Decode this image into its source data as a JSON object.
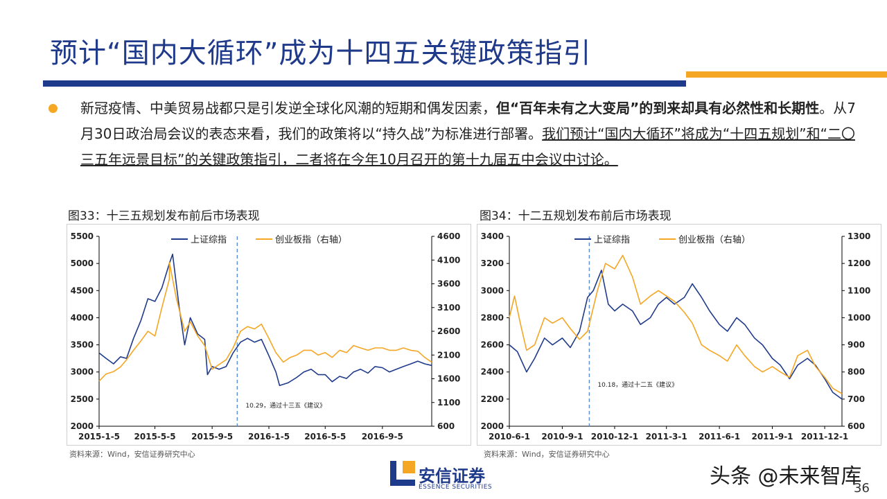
{
  "title": "预计“国内大循环”成为十四五关键政策指引",
  "paragraph": {
    "p1": "新冠疫情、中美贸易战都只是引发逆全球化风潮的短期和偶发因素，",
    "p2_bold": "但“百年未有之大变局”的到来却具有必然性和长期性",
    "p3": "。从7月30日政治局会议的表态来看，我们的政策将以“持久战”为标准进行部署。",
    "p4_underline": "我们预计“国内大循环”将成为“十四五规划”和“二〇三五年远景目标”的关键政策指引，二者将在今年10月召开的第十九届五中会议中讨论。"
  },
  "colors": {
    "navy": "#1e3a8a",
    "orange": "#f5a623",
    "title": "#1f3a8a",
    "divider": "#5b8fd6"
  },
  "chart_data": [
    {
      "type": "line",
      "title": "图33：十三五规划发布前后市场表现",
      "source": "资料来源：Wind，安信证券研究中心",
      "x_ticks": [
        "2015-1-5",
        "2015-5-5",
        "2015-9-5",
        "2016-1-5",
        "2016-5-5",
        "2016-9-5"
      ],
      "x_tick_dates": [
        "2015-01-05",
        "2015-05-05",
        "2015-09-05",
        "2016-01-05",
        "2016-05-05",
        "2016-09-05"
      ],
      "x_range": [
        "2015-01-05",
        "2016-12-20"
      ],
      "ylim_left": [
        2000,
        5500
      ],
      "yticks_left": [
        2000,
        2500,
        3000,
        3500,
        4000,
        4500,
        5000,
        5500
      ],
      "ylim_right": [
        600,
        4600
      ],
      "yticks_right": [
        600,
        1100,
        1600,
        2100,
        2600,
        3100,
        3600,
        4100,
        4600
      ],
      "annotation": {
        "text": "10.29，通过十三五《建议》",
        "date": "2015-10-29"
      },
      "legend_position": "top-center",
      "series": [
        {
          "name": "上证综指",
          "axis": "left",
          "color": "#1e3a8a",
          "points": [
            [
              "2015-01-05",
              3350
            ],
            [
              "2015-01-20",
              3250
            ],
            [
              "2015-02-05",
              3150
            ],
            [
              "2015-02-20",
              3280
            ],
            [
              "2015-03-05",
              3250
            ],
            [
              "2015-03-20",
              3620
            ],
            [
              "2015-04-05",
              3950
            ],
            [
              "2015-04-20",
              4350
            ],
            [
              "2015-05-05",
              4300
            ],
            [
              "2015-05-20",
              4550
            ],
            [
              "2015-06-05",
              5000
            ],
            [
              "2015-06-12",
              5170
            ],
            [
              "2015-06-26",
              4200
            ],
            [
              "2015-07-08",
              3500
            ],
            [
              "2015-07-20",
              4000
            ],
            [
              "2015-08-05",
              3700
            ],
            [
              "2015-08-20",
              3600
            ],
            [
              "2015-08-26",
              2950
            ],
            [
              "2015-09-05",
              3100
            ],
            [
              "2015-09-20",
              3050
            ],
            [
              "2015-10-05",
              3100
            ],
            [
              "2015-10-20",
              3350
            ],
            [
              "2015-11-05",
              3550
            ],
            [
              "2015-11-20",
              3620
            ],
            [
              "2015-12-05",
              3550
            ],
            [
              "2015-12-20",
              3600
            ],
            [
              "2016-01-05",
              3300
            ],
            [
              "2016-01-20",
              3000
            ],
            [
              "2016-01-28",
              2750
            ],
            [
              "2016-02-15",
              2800
            ],
            [
              "2016-03-05",
              2900
            ],
            [
              "2016-03-20",
              3000
            ],
            [
              "2016-04-05",
              3050
            ],
            [
              "2016-04-20",
              2950
            ],
            [
              "2016-05-05",
              2950
            ],
            [
              "2016-05-20",
              2820
            ],
            [
              "2016-06-05",
              2920
            ],
            [
              "2016-06-20",
              2880
            ],
            [
              "2016-07-05",
              3000
            ],
            [
              "2016-07-20",
              3050
            ],
            [
              "2016-08-05",
              2980
            ],
            [
              "2016-08-20",
              3100
            ],
            [
              "2016-09-05",
              3080
            ],
            [
              "2016-09-20",
              3000
            ],
            [
              "2016-10-05",
              3050
            ],
            [
              "2016-10-20",
              3100
            ],
            [
              "2016-11-05",
              3150
            ],
            [
              "2016-11-20",
              3200
            ],
            [
              "2016-12-05",
              3150
            ],
            [
              "2016-12-20",
              3120
            ]
          ]
        },
        {
          "name": "创业板指（右轴）",
          "axis": "right",
          "color": "#f5a623",
          "points": [
            [
              "2015-01-05",
              1550
            ],
            [
              "2015-01-20",
              1700
            ],
            [
              "2015-02-05",
              1750
            ],
            [
              "2015-02-20",
              1850
            ],
            [
              "2015-03-05",
              2000
            ],
            [
              "2015-03-20",
              2200
            ],
            [
              "2015-04-05",
              2400
            ],
            [
              "2015-04-20",
              2600
            ],
            [
              "2015-05-05",
              2500
            ],
            [
              "2015-05-20",
              3100
            ],
            [
              "2015-06-05",
              3700
            ],
            [
              "2015-06-05",
              4050
            ],
            [
              "2015-06-20",
              3300
            ],
            [
              "2015-07-08",
              2600
            ],
            [
              "2015-07-20",
              2800
            ],
            [
              "2015-08-05",
              2500
            ],
            [
              "2015-08-20",
              2300
            ],
            [
              "2015-09-05",
              1800
            ],
            [
              "2015-09-20",
              1900
            ],
            [
              "2015-10-05",
              2000
            ],
            [
              "2015-10-20",
              2250
            ],
            [
              "2015-11-05",
              2600
            ],
            [
              "2015-11-20",
              2700
            ],
            [
              "2015-12-05",
              2650
            ],
            [
              "2015-12-20",
              2750
            ],
            [
              "2016-01-05",
              2450
            ],
            [
              "2016-01-20",
              2150
            ],
            [
              "2016-02-05",
              1950
            ],
            [
              "2016-02-20",
              2050
            ],
            [
              "2016-03-05",
              2100
            ],
            [
              "2016-03-20",
              2200
            ],
            [
              "2016-04-05",
              2200
            ],
            [
              "2016-04-20",
              2100
            ],
            [
              "2016-05-05",
              2150
            ],
            [
              "2016-05-20",
              2050
            ],
            [
              "2016-06-05",
              2200
            ],
            [
              "2016-06-20",
              2150
            ],
            [
              "2016-07-05",
              2300
            ],
            [
              "2016-07-20",
              2250
            ],
            [
              "2016-08-05",
              2200
            ],
            [
              "2016-08-20",
              2250
            ],
            [
              "2016-09-05",
              2250
            ],
            [
              "2016-09-20",
              2200
            ],
            [
              "2016-10-05",
              2200
            ],
            [
              "2016-10-20",
              2250
            ],
            [
              "2016-11-05",
              2200
            ],
            [
              "2016-11-20",
              2180
            ],
            [
              "2016-12-05",
              2050
            ],
            [
              "2016-12-20",
              1950
            ]
          ]
        }
      ]
    },
    {
      "type": "line",
      "title": "图34：十二五规划发布前后市场表现",
      "source": "资料来源：Wind，安信证券研究中心",
      "x_ticks": [
        "2010-6-1",
        "2010-9-1",
        "2010-12-1",
        "2011-3-1",
        "2011-6-1",
        "2011-9-1",
        "2011-12-1"
      ],
      "x_tick_dates": [
        "2010-06-01",
        "2010-09-01",
        "2010-12-01",
        "2011-03-01",
        "2011-06-01",
        "2011-09-01",
        "2011-12-01"
      ],
      "x_range": [
        "2010-06-01",
        "2011-12-31"
      ],
      "ylim_left": [
        2000,
        3400
      ],
      "yticks_left": [
        2000,
        2200,
        2400,
        2600,
        2800,
        3000,
        3200,
        3400
      ],
      "ylim_right": [
        600,
        1300
      ],
      "yticks_right": [
        600,
        700,
        800,
        900,
        1000,
        1100,
        1200,
        1300
      ],
      "annotation": {
        "text": "10.18，通过十二五《建议》",
        "date": "2010-10-18"
      },
      "legend_position": "top-center",
      "series": [
        {
          "name": "上证综指",
          "axis": "left",
          "color": "#1e3a8a",
          "points": [
            [
              "2010-06-01",
              2600
            ],
            [
              "2010-06-15",
              2550
            ],
            [
              "2010-07-01",
              2400
            ],
            [
              "2010-07-15",
              2500
            ],
            [
              "2010-08-01",
              2650
            ],
            [
              "2010-08-15",
              2600
            ],
            [
              "2010-09-01",
              2650
            ],
            [
              "2010-09-15",
              2580
            ],
            [
              "2010-10-01",
              2700
            ],
            [
              "2010-10-15",
              2950
            ],
            [
              "2010-10-25",
              3000
            ],
            [
              "2010-11-08",
              3150
            ],
            [
              "2010-11-20",
              2900
            ],
            [
              "2010-12-01",
              2850
            ],
            [
              "2010-12-15",
              2900
            ],
            [
              "2011-01-01",
              2850
            ],
            [
              "2011-01-15",
              2750
            ],
            [
              "2011-02-01",
              2800
            ],
            [
              "2011-02-15",
              2900
            ],
            [
              "2011-03-01",
              2950
            ],
            [
              "2011-03-15",
              2900
            ],
            [
              "2011-04-01",
              2950
            ],
            [
              "2011-04-15",
              3050
            ],
            [
              "2011-05-01",
              2950
            ],
            [
              "2011-05-15",
              2850
            ],
            [
              "2011-06-01",
              2750
            ],
            [
              "2011-06-15",
              2700
            ],
            [
              "2011-07-01",
              2800
            ],
            [
              "2011-07-15",
              2750
            ],
            [
              "2011-08-01",
              2650
            ],
            [
              "2011-08-15",
              2600
            ],
            [
              "2011-09-01",
              2500
            ],
            [
              "2011-09-15",
              2450
            ],
            [
              "2011-10-01",
              2350
            ],
            [
              "2011-10-15",
              2450
            ],
            [
              "2011-11-01",
              2500
            ],
            [
              "2011-11-15",
              2450
            ],
            [
              "2011-12-01",
              2350
            ],
            [
              "2011-12-15",
              2250
            ],
            [
              "2011-12-31",
              2200
            ]
          ]
        },
        {
          "name": "创业板指（右轴）",
          "axis": "right",
          "color": "#f5a623",
          "points": [
            [
              "2010-06-01",
              1000
            ],
            [
              "2010-06-10",
              1080
            ],
            [
              "2010-06-20",
              980
            ],
            [
              "2010-07-01",
              880
            ],
            [
              "2010-07-15",
              900
            ],
            [
              "2010-08-01",
              1000
            ],
            [
              "2010-08-15",
              980
            ],
            [
              "2010-09-01",
              1000
            ],
            [
              "2010-09-15",
              960
            ],
            [
              "2010-10-01",
              920
            ],
            [
              "2010-10-15",
              950
            ],
            [
              "2010-11-01",
              1100
            ],
            [
              "2010-11-15",
              1200
            ],
            [
              "2010-12-01",
              1180
            ],
            [
              "2010-12-15",
              1230
            ],
            [
              "2011-01-01",
              1150
            ],
            [
              "2011-01-15",
              1050
            ],
            [
              "2011-02-01",
              1080
            ],
            [
              "2011-02-15",
              1100
            ],
            [
              "2011-03-01",
              1080
            ],
            [
              "2011-03-15",
              1060
            ],
            [
              "2011-04-01",
              1020
            ],
            [
              "2011-04-15",
              980
            ],
            [
              "2011-05-01",
              900
            ],
            [
              "2011-05-15",
              880
            ],
            [
              "2011-06-01",
              860
            ],
            [
              "2011-06-15",
              840
            ],
            [
              "2011-07-01",
              900
            ],
            [
              "2011-07-15",
              860
            ],
            [
              "2011-08-01",
              820
            ],
            [
              "2011-08-15",
              800
            ],
            [
              "2011-09-01",
              820
            ],
            [
              "2011-09-15",
              800
            ],
            [
              "2011-10-01",
              780
            ],
            [
              "2011-10-15",
              860
            ],
            [
              "2011-11-01",
              880
            ],
            [
              "2011-11-15",
              820
            ],
            [
              "2011-12-01",
              780
            ],
            [
              "2011-12-15",
              740
            ],
            [
              "2011-12-31",
              720
            ]
          ]
        }
      ]
    }
  ],
  "logo": {
    "cn": "安信证券",
    "en": "ESSENCE SECURITIES"
  },
  "watermark": "头条 @未来智库",
  "page_number": "36"
}
